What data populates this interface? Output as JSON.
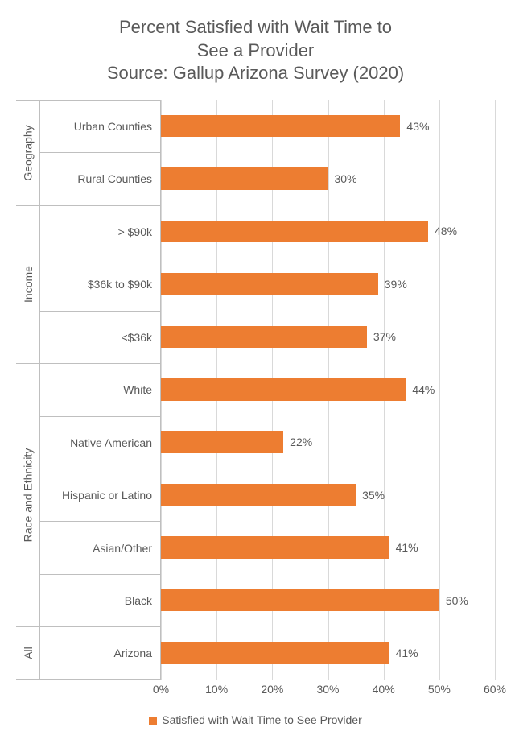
{
  "chart": {
    "type": "bar-horizontal",
    "title_line1": "Percent Satisfied with Wait Time to",
    "title_line2": "See a Provider",
    "title_line3": "Source: Gallup Arizona Survey (2020)",
    "title_color": "#595959",
    "title_fontsize": 22,
    "bar_color": "#ed7d31",
    "background_color": "#ffffff",
    "grid_color": "#d9d9d9",
    "border_color": "#bfbfbf",
    "label_color": "#595959",
    "label_fontsize": 14,
    "xlim": [
      0,
      60
    ],
    "xtick_step": 10,
    "xticks": [
      "0%",
      "10%",
      "20%",
      "30%",
      "40%",
      "50%",
      "60%"
    ],
    "groups": [
      {
        "name": "Geography",
        "rows": 2
      },
      {
        "name": "Income",
        "rows": 3
      },
      {
        "name": "Race and Ethnicity",
        "rows": 5
      },
      {
        "name": "All",
        "rows": 1
      }
    ],
    "categories": [
      {
        "label": "Urban Counties",
        "value": 43,
        "value_label": "43%"
      },
      {
        "label": "Rural Counties",
        "value": 30,
        "value_label": "30%"
      },
      {
        "label": "> $90k",
        "value": 48,
        "value_label": "48%"
      },
      {
        "label": "$36k to $90k",
        "value": 39,
        "value_label": "39%"
      },
      {
        "label": "<$36k",
        "value": 37,
        "value_label": "37%"
      },
      {
        "label": "White",
        "value": 44,
        "value_label": "44%"
      },
      {
        "label": "Native American",
        "value": 22,
        "value_label": "22%"
      },
      {
        "label": "Hispanic or Latino",
        "value": 35,
        "value_label": "35%"
      },
      {
        "label": "Asian/Other",
        "value": 41,
        "value_label": "41%"
      },
      {
        "label": "Black",
        "value": 50,
        "value_label": "50%"
      },
      {
        "label": "Arizona",
        "value": 41,
        "value_label": "41%"
      }
    ],
    "legend_label": "Satisfied with Wait Time to See Provider"
  }
}
